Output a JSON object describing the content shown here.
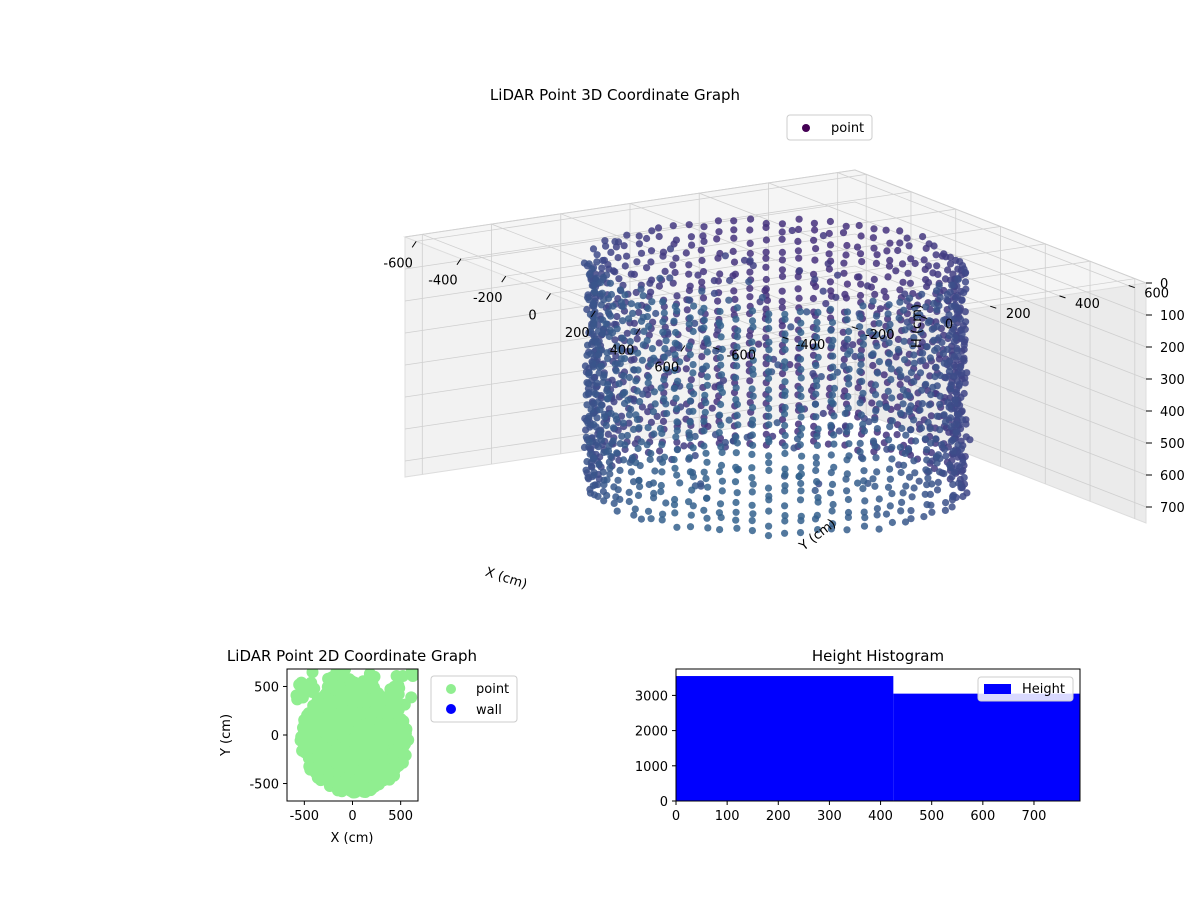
{
  "chart_data": [
    {
      "type": "scatter",
      "projection": "3d",
      "title": "LiDAR Point 3D Coordinate Graph",
      "xlabel": "X (cm)",
      "ylabel": "Y (cm)",
      "zlabel": "H (cm)",
      "x_ticks": [
        -600,
        -400,
        -200,
        0,
        200,
        400,
        600
      ],
      "y_ticks": [
        -600,
        -400,
        -200,
        0,
        200,
        400,
        600
      ],
      "z_ticks": [
        0,
        100,
        200,
        300,
        400,
        500,
        600,
        700
      ],
      "xlim": [
        -650,
        650
      ],
      "ylim": [
        -650,
        650
      ],
      "zlim": [
        0,
        750
      ],
      "z_axis_inverted": true,
      "colormap": "viridis",
      "grid": true,
      "legend": {
        "placement": "top-right",
        "entries": [
          "point"
        ]
      },
      "series": [
        {
          "name": "point",
          "description_values": {
            "cylinder_radius_cm": 450,
            "height_range_cm": [
              0,
              750
            ]
          }
        }
      ]
    },
    {
      "type": "scatter",
      "title": "LiDAR Point 2D Coordinate Graph",
      "xlabel": "X (cm)",
      "ylabel": "Y (cm)",
      "x_ticks": [
        -500,
        0,
        500
      ],
      "y_ticks": [
        -500,
        0,
        500
      ],
      "xlim": [
        -680,
        680
      ],
      "ylim": [
        -680,
        680
      ],
      "legend": {
        "placement": "outside-right",
        "entries": [
          "point",
          "wall"
        ]
      },
      "series": [
        {
          "name": "point",
          "color": "#90ee90"
        },
        {
          "name": "wall",
          "color": "#0000ff"
        }
      ]
    },
    {
      "type": "bar",
      "subtype": "histogram",
      "title": "Height Histogram",
      "x_ticks": [
        0,
        100,
        200,
        300,
        400,
        500,
        600,
        700
      ],
      "y_ticks": [
        0,
        1000,
        2000,
        3000
      ],
      "xlim": [
        0,
        790
      ],
      "ylim": [
        0,
        3750
      ],
      "legend": {
        "placement": "top-right",
        "entries": [
          "Height"
        ]
      },
      "series": [
        {
          "name": "Height",
          "color": "#0000ff",
          "bins": [
            {
              "from": 0,
              "to": 425,
              "count": 3550
            },
            {
              "from": 425,
              "to": 790,
              "count": 3050
            }
          ]
        }
      ]
    }
  ]
}
